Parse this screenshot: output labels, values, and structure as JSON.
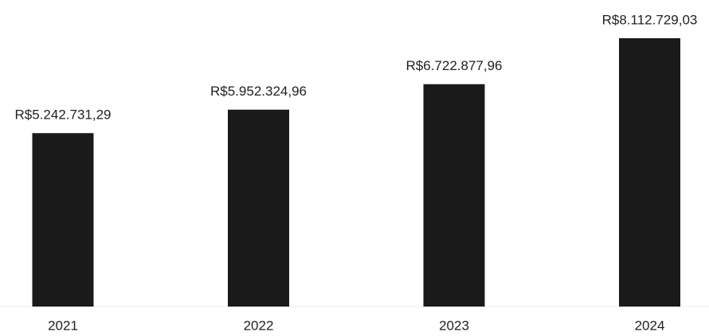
{
  "chart_data": {
    "type": "bar",
    "categories": [
      "2021",
      "2022",
      "2023",
      "2024"
    ],
    "values": [
      5242731.29,
      5952324.96,
      6722877.96,
      8112729.03
    ],
    "value_labels": [
      "R$5.242.731,29",
      "R$5.952.324,96",
      "R$6.722.877,96",
      "R$8.112.729,03"
    ],
    "color": "#1a1a1a"
  }
}
